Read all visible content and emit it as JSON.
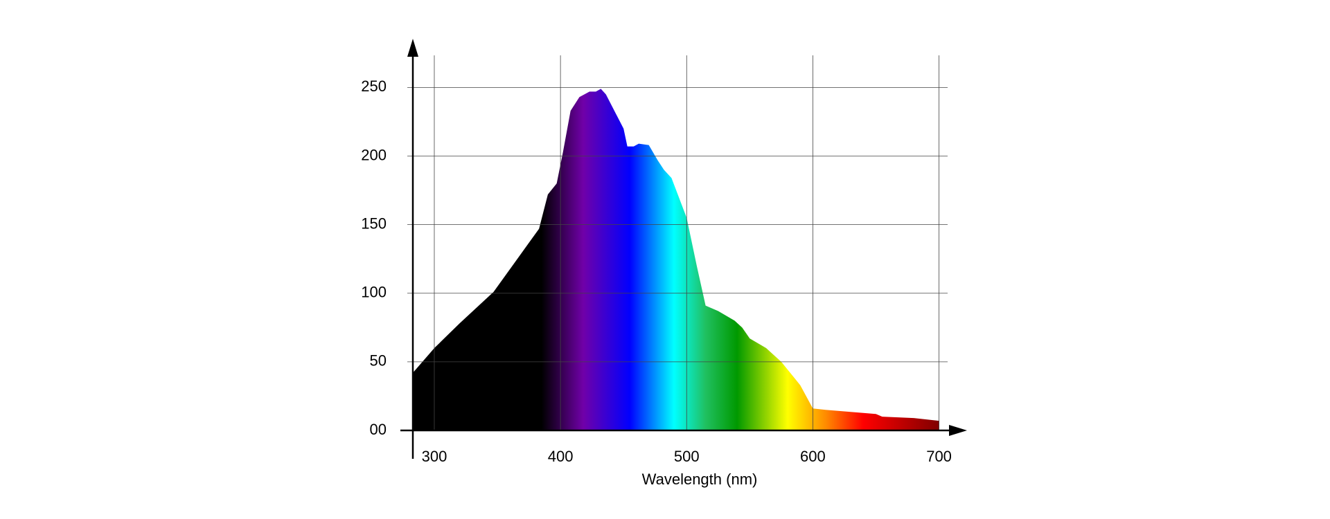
{
  "chart_data": {
    "type": "area",
    "x_label": "Wavelength (nm)",
    "x": [
      283,
      300,
      320,
      347,
      383,
      390,
      397,
      402,
      408,
      415,
      423,
      428,
      432,
      436,
      450,
      453,
      458,
      462,
      470,
      477,
      482,
      488,
      500,
      508,
      515,
      525,
      538,
      544,
      550,
      563,
      575,
      590,
      600,
      610,
      650,
      655,
      680,
      700
    ],
    "values": [
      42,
      60,
      78,
      101,
      147,
      172,
      180,
      203,
      233,
      243,
      247,
      247,
      249,
      245,
      220,
      207,
      207,
      209,
      208,
      197,
      190,
      184,
      155,
      120,
      91,
      87,
      80,
      75,
      67,
      60,
      50,
      33,
      16,
      15,
      12,
      10,
      9,
      7
    ],
    "xlim": [
      283,
      720
    ],
    "ylim": [
      0,
      284
    ],
    "xticks": [
      300,
      400,
      500,
      600,
      700
    ],
    "yticks": [
      {
        "value": 0,
        "label": "00"
      },
      50,
      100,
      150,
      200,
      250
    ],
    "grid": true,
    "gradient": [
      {
        "x": 385,
        "color": "#000000"
      },
      {
        "x": 418,
        "color": "#7000a8"
      },
      {
        "x": 455,
        "color": "#0000ff"
      },
      {
        "x": 490,
        "color": "#00ffff"
      },
      {
        "x": 515,
        "color": "#20c060"
      },
      {
        "x": 540,
        "color": "#009900"
      },
      {
        "x": 580,
        "color": "#ffff00"
      },
      {
        "x": 610,
        "color": "#ff8c00"
      },
      {
        "x": 640,
        "color": "#ff0000"
      },
      {
        "x": 700,
        "color": "#800000"
      }
    ]
  }
}
